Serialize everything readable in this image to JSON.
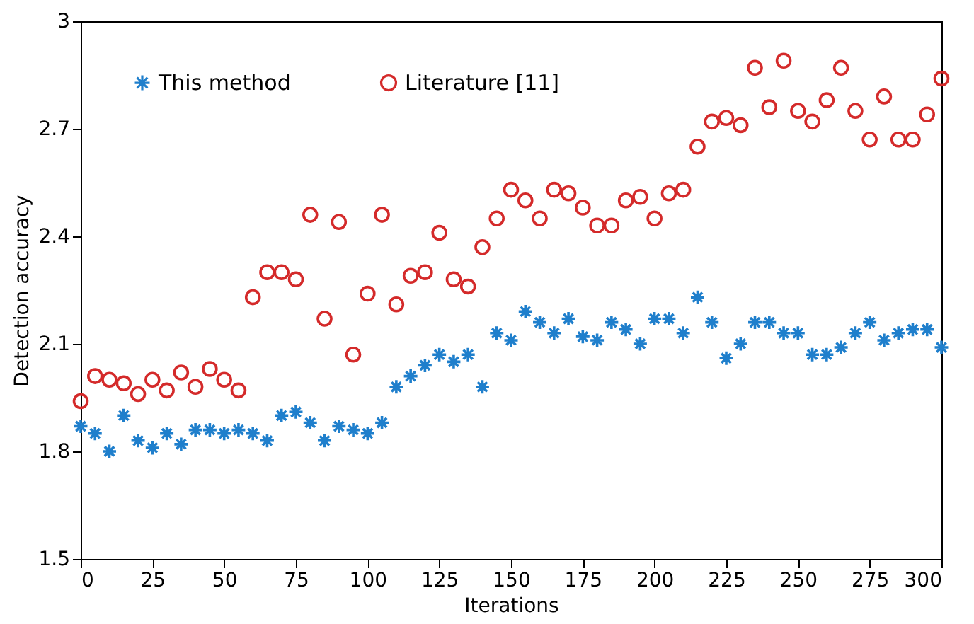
{
  "chart_data": {
    "type": "scatter",
    "xlabel": "Iterations",
    "ylabel": "Detection accuracy",
    "x": [
      0,
      5,
      10,
      15,
      20,
      25,
      30,
      35,
      40,
      45,
      50,
      55,
      60,
      65,
      70,
      75,
      80,
      85,
      90,
      95,
      100,
      105,
      110,
      115,
      120,
      125,
      130,
      135,
      140,
      145,
      150,
      155,
      160,
      165,
      170,
      175,
      180,
      185,
      190,
      195,
      200,
      205,
      210,
      215,
      220,
      225,
      230,
      235,
      240,
      245,
      250,
      255,
      260,
      265,
      270,
      275,
      280,
      285,
      290,
      295,
      300
    ],
    "series": [
      {
        "name": "This method",
        "color": "#1f7fcc",
        "marker": "cross",
        "values": [
          1.87,
          1.85,
          1.8,
          1.9,
          1.83,
          1.81,
          1.85,
          1.82,
          1.86,
          1.86,
          1.85,
          1.86,
          1.85,
          1.83,
          1.9,
          1.91,
          1.88,
          1.83,
          1.87,
          1.86,
          1.85,
          1.88,
          1.98,
          2.01,
          2.04,
          2.07,
          2.05,
          2.07,
          1.98,
          2.13,
          2.11,
          2.19,
          2.16,
          2.13,
          2.17,
          2.12,
          2.11,
          2.16,
          2.14,
          2.1,
          2.17,
          2.17,
          2.13,
          2.23,
          2.16,
          2.06,
          2.1,
          2.16,
          2.16,
          2.13,
          2.13,
          2.07,
          2.07,
          2.09,
          2.13,
          2.16,
          2.11,
          2.13,
          2.14,
          2.14,
          2.09
        ]
      },
      {
        "name": "Literature [11]",
        "color": "#d42a2a",
        "marker": "circle",
        "values": [
          1.94,
          2.01,
          2.0,
          1.99,
          1.96,
          2.0,
          1.97,
          2.02,
          1.98,
          2.03,
          2.0,
          1.97,
          2.23,
          2.3,
          2.3,
          2.28,
          2.46,
          2.17,
          2.44,
          2.07,
          2.24,
          2.46,
          2.21,
          2.29,
          2.3,
          2.41,
          2.28,
          2.26,
          2.37,
          2.45,
          2.53,
          2.5,
          2.45,
          2.53,
          2.52,
          2.48,
          2.43,
          2.43,
          2.5,
          2.51,
          2.45,
          2.52,
          2.53,
          2.65,
          2.72,
          2.73,
          2.71,
          2.87,
          2.76,
          2.89,
          2.75,
          2.72,
          2.78,
          2.87,
          2.75,
          2.67,
          2.79,
          2.67,
          2.67,
          2.74,
          2.84
        ]
      }
    ],
    "xlim": [
      0,
      300
    ],
    "xticks": [
      0,
      25,
      50,
      75,
      100,
      125,
      150,
      175,
      200,
      225,
      250,
      275,
      300
    ],
    "ylim": [
      1.5,
      3
    ],
    "yticks": [
      1.5,
      1.8,
      2.1,
      2.4,
      2.7,
      {
        "value": 3,
        "label": "3"
      }
    ],
    "legend": "top left"
  }
}
